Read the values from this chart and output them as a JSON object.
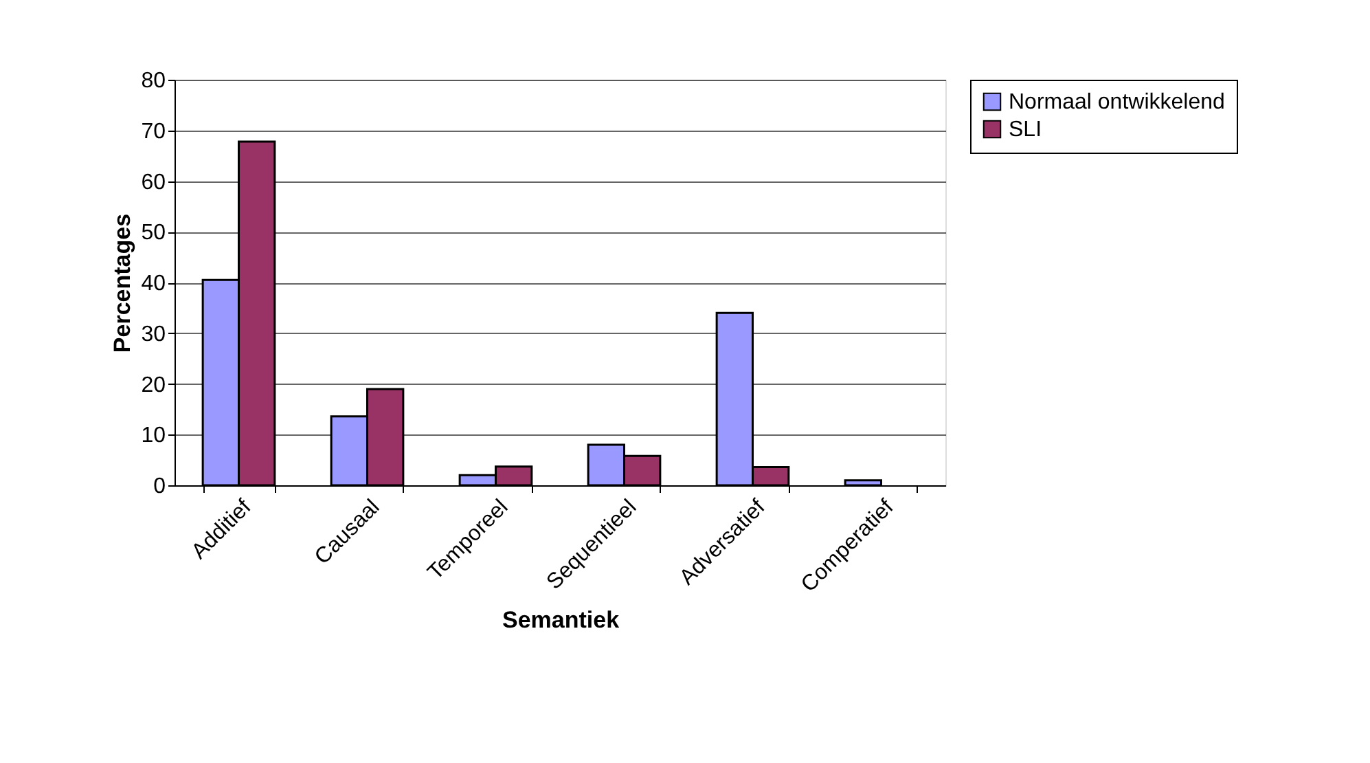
{
  "chart_data": {
    "type": "bar",
    "xlabel": "Semantiek",
    "ylabel": "Percentages",
    "categories": [
      "Additief",
      "Causaal",
      "Temporeel",
      "Sequentieel",
      "Adversatief",
      "Comperatief"
    ],
    "series": [
      {
        "name": "Normaal ontwikkelend",
        "color": "#9999ff",
        "values": [
          40.5,
          13.6,
          2,
          8,
          34,
          1
        ]
      },
      {
        "name": "SLI",
        "color": "#993366",
        "values": [
          67.8,
          19,
          3.7,
          5.8,
          3.6,
          null
        ]
      }
    ],
    "ylim": [
      0,
      80
    ],
    "yticks": [
      0,
      10,
      20,
      30,
      40,
      50,
      60,
      70,
      80
    ],
    "grid": "y",
    "legend": "right"
  }
}
